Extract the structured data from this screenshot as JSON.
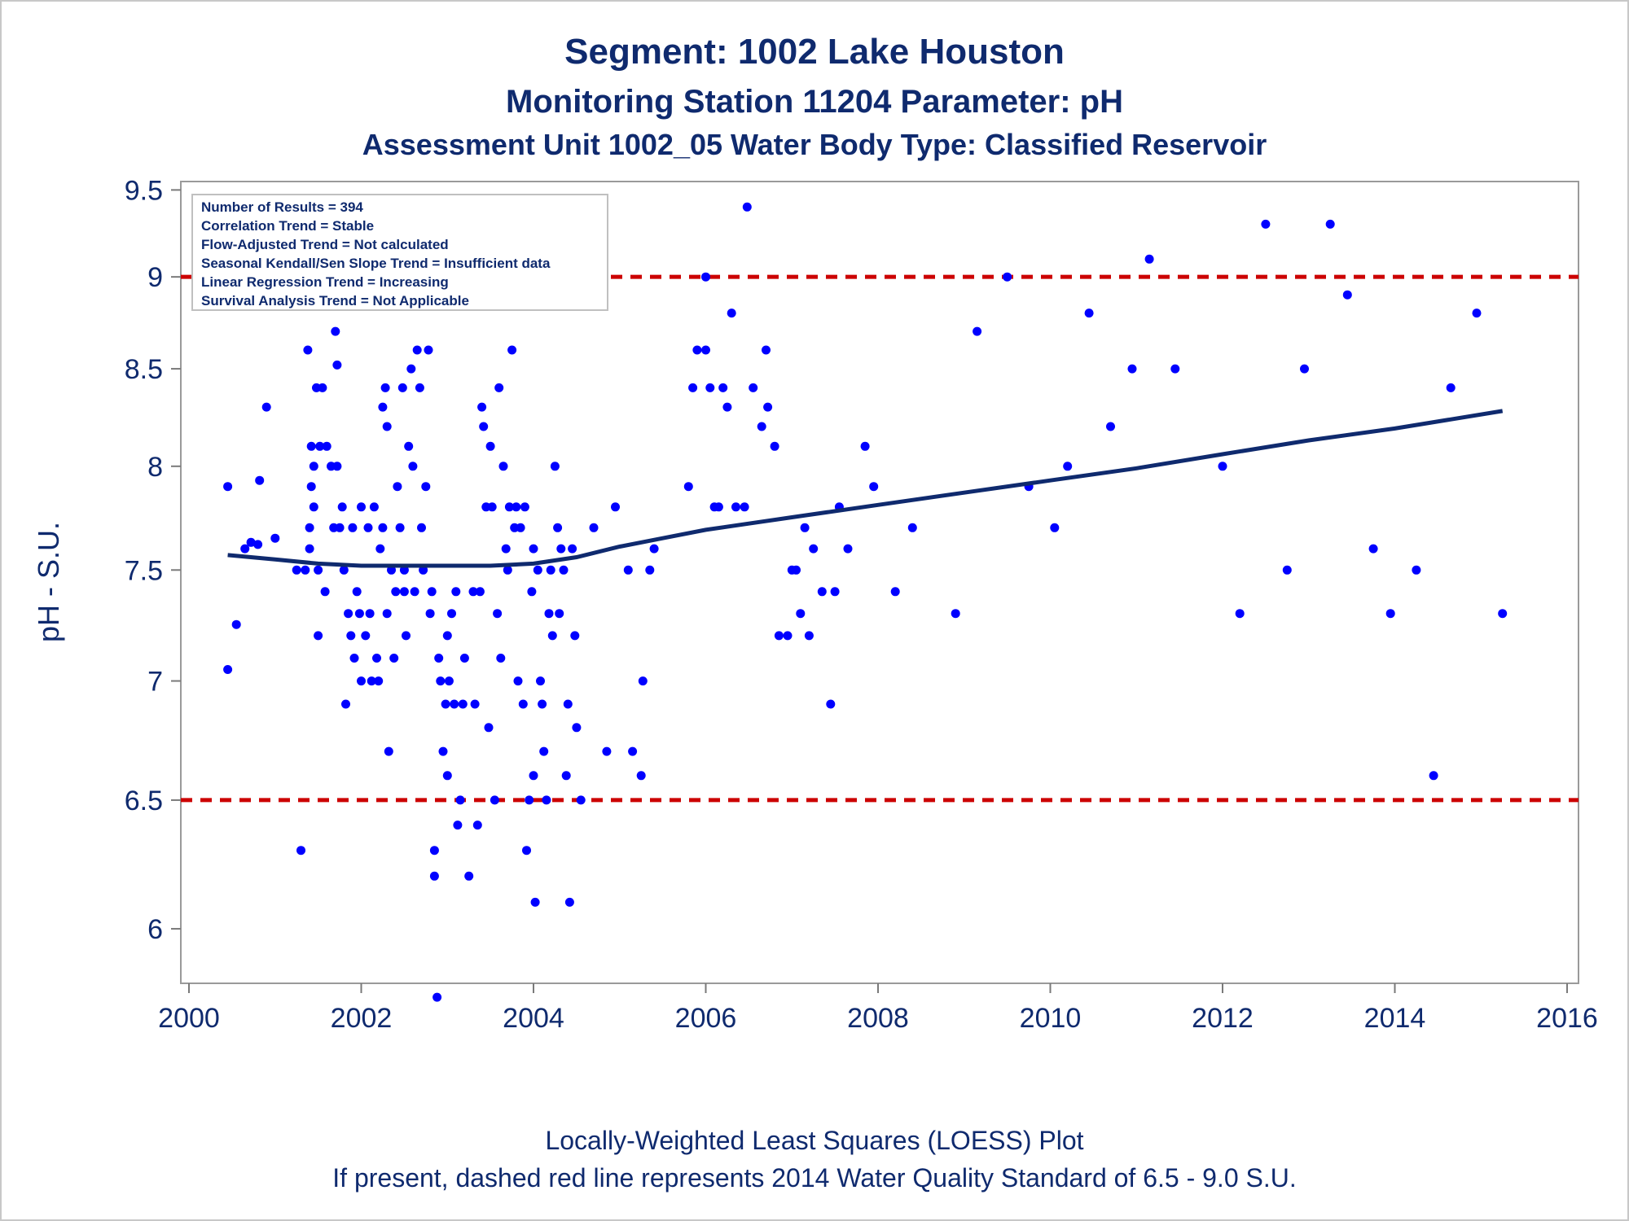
{
  "chart_data": {
    "type": "scatter",
    "title": "Segment: 1002  Lake Houston",
    "subtitle": "Monitoring Station 11204 Parameter: pH",
    "subtitle2": "Assessment Unit 1002_05   Water Body Type: Classified Reservoir",
    "xlabel": "",
    "ylabel": "pH - S.U.",
    "footnote1": "Locally-Weighted Least Squares (LOESS) Plot",
    "footnote2": "If present, dashed red line represents 2014 Water Quality Standard of 6.5 - 9.0 S.U.",
    "xlim": [
      2000,
      2016
    ],
    "ylim": [
      5.8,
      9.55
    ],
    "y_scale": "log",
    "x_ticks": [
      "2000",
      "2002",
      "2004",
      "2006",
      "2008",
      "2010",
      "2012",
      "2014",
      "2016"
    ],
    "y_ticks": [
      "6",
      "6.5",
      "7",
      "7.5",
      "8",
      "8.5",
      "9",
      "9.5"
    ],
    "grid": false,
    "colors": {
      "points": "#0000ff",
      "loess": "#0f2a6e",
      "reference": "#cc0000",
      "text": "#0f2a6e"
    },
    "legend": {
      "position": "top-left",
      "lines": [
        "Number of Results = 394",
        "Correlation Trend = Stable",
        "Flow-Adjusted Trend = Not calculated",
        "Seasonal Kendall/Sen Slope Trend = Insufficient data",
        "Linear Regression Trend = Increasing",
        "Survival Analysis Trend = Not Applicable"
      ]
    },
    "reference_lines": [
      {
        "y": 9.0,
        "style": "dashed"
      },
      {
        "y": 6.5,
        "style": "dashed"
      }
    ],
    "loess": {
      "x": [
        2000.45,
        2001.0,
        2001.5,
        2002.0,
        2002.5,
        2003.0,
        2003.5,
        2004.0,
        2004.5,
        2005.0,
        2005.5,
        2006.0,
        2006.5,
        2007.0,
        2008.0,
        2009.0,
        2010.0,
        2011.0,
        2012.0,
        2013.0,
        2014.0,
        2015.25
      ],
      "y": [
        7.57,
        7.55,
        7.53,
        7.52,
        7.52,
        7.52,
        7.52,
        7.53,
        7.56,
        7.61,
        7.65,
        7.69,
        7.72,
        7.75,
        7.81,
        7.87,
        7.93,
        7.99,
        8.06,
        8.13,
        8.19,
        8.28
      ]
    },
    "points": {
      "x": [
        2000.45,
        2000.45,
        2000.55,
        2000.65,
        2000.72,
        2000.8,
        2000.82,
        2000.9,
        2001.0,
        2001.25,
        2001.3,
        2001.35,
        2001.38,
        2001.4,
        2001.4,
        2001.42,
        2001.42,
        2001.45,
        2001.45,
        2001.48,
        2001.5,
        2001.5,
        2001.52,
        2001.55,
        2001.58,
        2001.6,
        2001.65,
        2001.68,
        2001.7,
        2001.72,
        2001.72,
        2001.75,
        2001.78,
        2001.8,
        2001.82,
        2001.85,
        2001.88,
        2001.9,
        2001.92,
        2001.95,
        2001.98,
        2002.0,
        2002.0,
        2002.05,
        2002.08,
        2002.1,
        2002.12,
        2002.15,
        2002.18,
        2002.2,
        2002.22,
        2002.25,
        2002.25,
        2002.28,
        2002.3,
        2002.3,
        2002.32,
        2002.35,
        2002.38,
        2002.4,
        2002.42,
        2002.45,
        2002.48,
        2002.5,
        2002.5,
        2002.52,
        2002.55,
        2002.58,
        2002.6,
        2002.62,
        2002.65,
        2002.68,
        2002.7,
        2002.72,
        2002.75,
        2002.78,
        2002.8,
        2002.82,
        2002.85,
        2002.85,
        2002.88,
        2002.9,
        2002.92,
        2002.95,
        2002.98,
        2003.0,
        2003.0,
        2003.02,
        2003.05,
        2003.08,
        2003.1,
        2003.12,
        2003.15,
        2003.18,
        2003.2,
        2003.25,
        2003.3,
        2003.32,
        2003.35,
        2003.38,
        2003.4,
        2003.42,
        2003.45,
        2003.48,
        2003.5,
        2003.52,
        2003.55,
        2003.58,
        2003.6,
        2003.62,
        2003.65,
        2003.68,
        2003.7,
        2003.72,
        2003.75,
        2003.78,
        2003.8,
        2003.82,
        2003.85,
        2003.88,
        2003.9,
        2003.92,
        2003.95,
        2003.98,
        2004.0,
        2004.0,
        2004.02,
        2004.05,
        2004.08,
        2004.1,
        2004.12,
        2004.15,
        2004.18,
        2004.2,
        2004.22,
        2004.25,
        2004.28,
        2004.3,
        2004.32,
        2004.35,
        2004.38,
        2004.4,
        2004.42,
        2004.45,
        2004.48,
        2004.5,
        2004.55,
        2004.7,
        2004.85,
        2004.95,
        2005.1,
        2005.15,
        2005.25,
        2005.27,
        2005.35,
        2005.4,
        2005.8,
        2005.85,
        2005.9,
        2006.0,
        2006.0,
        2006.05,
        2006.1,
        2006.15,
        2006.2,
        2006.25,
        2006.3,
        2006.35,
        2006.45,
        2006.48,
        2006.55,
        2006.65,
        2006.7,
        2006.72,
        2006.8,
        2006.85,
        2006.95,
        2007.0,
        2007.05,
        2007.1,
        2007.15,
        2007.2,
        2007.25,
        2007.35,
        2007.45,
        2007.5,
        2007.55,
        2007.65,
        2007.85,
        2007.95,
        2008.2,
        2008.4,
        2008.9,
        2009.15,
        2009.5,
        2009.75,
        2010.05,
        2010.2,
        2010.45,
        2010.7,
        2010.95,
        2011.15,
        2011.45,
        2012.0,
        2012.2,
        2012.5,
        2012.75,
        2012.95,
        2013.25,
        2013.45,
        2013.75,
        2013.95,
        2014.25,
        2014.45,
        2014.65,
        2014.95,
        2015.25
      ],
      "y": [
        7.9,
        7.05,
        7.25,
        7.6,
        7.63,
        7.62,
        7.93,
        8.3,
        7.65,
        7.5,
        6.3,
        7.5,
        8.6,
        7.6,
        7.7,
        8.1,
        7.9,
        7.8,
        8.0,
        8.4,
        7.5,
        7.2,
        8.1,
        8.4,
        7.4,
        8.1,
        8.0,
        7.7,
        8.7,
        8.52,
        8.0,
        7.7,
        7.8,
        7.5,
        6.9,
        7.3,
        7.2,
        7.7,
        7.1,
        7.4,
        7.3,
        7.8,
        7.0,
        7.2,
        7.7,
        7.3,
        7.0,
        7.8,
        7.1,
        7.0,
        7.6,
        7.7,
        8.3,
        8.4,
        8.2,
        7.3,
        6.7,
        7.5,
        7.1,
        7.4,
        7.9,
        7.7,
        8.4,
        7.5,
        7.4,
        7.2,
        8.1,
        8.5,
        8.0,
        7.4,
        8.6,
        8.4,
        7.7,
        7.5,
        7.9,
        8.6,
        7.3,
        7.4,
        6.3,
        6.2,
        5.75,
        7.1,
        7.0,
        6.7,
        6.9,
        7.2,
        6.6,
        7.0,
        7.3,
        6.9,
        7.4,
        6.4,
        6.5,
        6.9,
        7.1,
        6.2,
        7.4,
        6.9,
        6.4,
        7.4,
        8.3,
        8.2,
        7.8,
        6.8,
        8.1,
        7.8,
        6.5,
        7.3,
        8.4,
        7.1,
        8.0,
        7.6,
        7.5,
        7.8,
        8.6,
        7.7,
        7.8,
        7.0,
        7.7,
        6.9,
        7.8,
        6.3,
        6.5,
        7.4,
        7.6,
        6.6,
        6.1,
        7.5,
        7.0,
        6.9,
        6.7,
        6.5,
        7.3,
        7.5,
        7.2,
        8.0,
        7.7,
        7.3,
        7.6,
        7.5,
        6.6,
        6.9,
        6.1,
        7.6,
        7.2,
        6.8,
        6.5,
        7.7,
        6.7,
        7.8,
        7.5,
        6.7,
        6.6,
        7.0,
        7.5,
        7.6,
        7.9,
        8.4,
        8.6,
        8.6,
        9.0,
        8.4,
        7.8,
        7.8,
        8.4,
        8.3,
        8.8,
        7.8,
        7.8,
        9.4,
        8.4,
        8.2,
        8.6,
        8.3,
        8.1,
        7.2,
        7.2,
        7.5,
        7.5,
        7.3,
        7.7,
        7.2,
        7.6,
        7.4,
        6.9,
        7.4,
        7.8,
        7.6,
        8.1,
        7.9,
        7.4,
        7.7,
        7.3,
        8.7,
        9.0,
        7.9,
        7.7,
        8.0,
        8.8,
        8.2,
        8.5,
        9.1,
        8.5,
        8.0,
        7.3,
        9.3,
        7.5,
        8.5,
        9.3,
        8.9,
        7.6,
        7.3,
        7.5,
        6.6,
        8.4,
        8.8,
        7.3
      ]
    }
  }
}
